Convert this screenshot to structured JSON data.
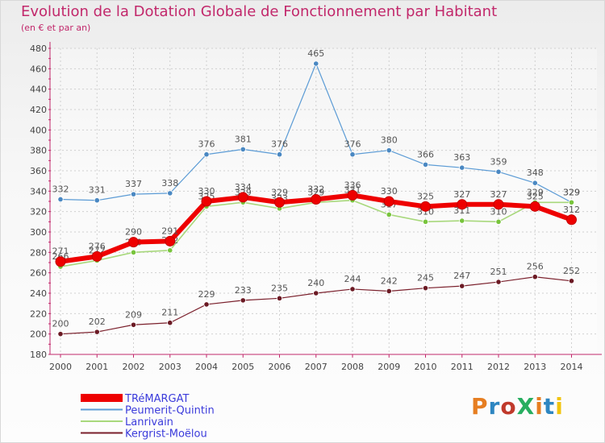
{
  "title": "Evolution de la Dotation Globale de Fonctionnement par Habitant",
  "subtitle": "(en € et par an)",
  "logo": {
    "text": "ProXiti",
    "letters": [
      "P",
      "r",
      "o",
      "X",
      "i",
      "t",
      "i"
    ],
    "colors": [
      "#e67e22",
      "#2e86c1",
      "#c0392b",
      "#27ae60",
      "#e67e22",
      "#2e86c1",
      "#f1c40f"
    ]
  },
  "chart_data": {
    "type": "line",
    "title": "Evolution de la Dotation Globale de Fonctionnement par Habitant",
    "subtitle": "(en € et par an)",
    "xlabel": "",
    "ylabel": "",
    "x": [
      "2000",
      "2001",
      "2002",
      "2003",
      "2004",
      "2005",
      "2006",
      "2007",
      "2008",
      "2009",
      "2010",
      "2011",
      "2012",
      "2013",
      "2014"
    ],
    "ylim": [
      180,
      480
    ],
    "yticks": [
      180,
      200,
      220,
      240,
      260,
      280,
      300,
      320,
      340,
      360,
      380,
      400,
      420,
      440,
      460,
      480
    ],
    "grid": true,
    "legend_position": "bottom-left",
    "series": [
      {
        "name": "Peumerit-Quintin",
        "color": "#5b9bd5",
        "dot": "#4a88c2",
        "width": 1.2,
        "values": [
          332,
          331,
          337,
          338,
          376,
          381,
          376,
          465,
          376,
          380,
          366,
          363,
          359,
          348,
          329
        ]
      },
      {
        "name": "Lanrivain",
        "color": "#a8d87c",
        "dot": "#78c43c",
        "width": 1.6,
        "values": [
          266,
          272,
          280,
          282,
          325,
          329,
          323,
          329,
          331,
          317,
          310,
          311,
          310,
          329,
          329
        ]
      },
      {
        "name": "Kergrist-Moëlou",
        "color": "#7a1f2b",
        "dot": "#6b1a24",
        "width": 1.2,
        "values": [
          200,
          202,
          209,
          211,
          229,
          233,
          235,
          240,
          244,
          242,
          245,
          247,
          251,
          256,
          252
        ]
      },
      {
        "name": "TRéMARGAT",
        "color": "#ee0000",
        "dot": "#ee0000",
        "width": 6,
        "values": [
          271,
          276,
          290,
          291,
          330,
          334,
          329,
          332,
          336,
          330,
          325,
          327,
          327,
          325,
          312
        ]
      }
    ],
    "legend_order": [
      "TRéMARGAT",
      "Peumerit-Quintin",
      "Lanrivain",
      "Kergrist-Moëlou"
    ]
  }
}
